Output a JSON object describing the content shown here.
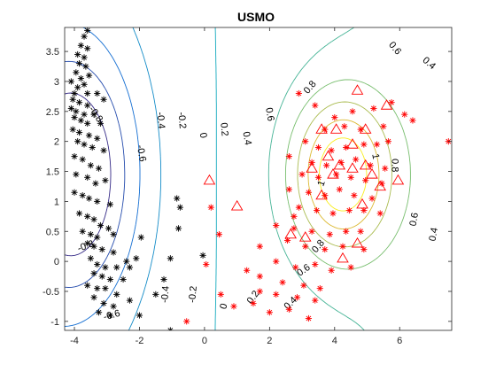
{
  "chart_data": {
    "type": "scatter",
    "title": "USMO",
    "xlabel": "",
    "ylabel": "",
    "xlim": [
      -4.3,
      7.6
    ],
    "ylim": [
      -1.15,
      3.9
    ],
    "xticks": [
      -4,
      -2,
      0,
      2,
      4,
      6
    ],
    "yticks": [
      -1,
      -0.5,
      0,
      0.5,
      1,
      1.5,
      2,
      2.5,
      3,
      3.5
    ],
    "grid": false,
    "legend": "none",
    "colors": {
      "class_negative": "#000000",
      "class_positive": "#ff0000",
      "support_vectors": "#ff0000"
    },
    "marker_names": {
      "class_negative": "black-asterisk",
      "class_positive": "red-asterisk",
      "support_vectors": "red-triangle"
    },
    "series": [
      {
        "marker": "black-asterisk",
        "points": [
          [
            -3.6,
            3.85
          ],
          [
            -3.7,
            3.75
          ],
          [
            -3.8,
            3.6
          ],
          [
            -3.6,
            3.55
          ],
          [
            -3.9,
            3.45
          ],
          [
            -3.7,
            3.4
          ],
          [
            -3.85,
            3.3
          ],
          [
            -3.65,
            3.25
          ],
          [
            -3.95,
            3.15
          ],
          [
            -3.55,
            3.1
          ],
          [
            -3.8,
            3.05
          ],
          [
            -4.1,
            3.0
          ],
          [
            -3.7,
            2.95
          ],
          [
            -3.9,
            2.9
          ],
          [
            -4.0,
            2.8
          ],
          [
            -3.6,
            2.8
          ],
          [
            -3.3,
            2.8
          ],
          [
            -4.05,
            2.7
          ],
          [
            -3.85,
            2.65
          ],
          [
            -3.6,
            2.6
          ],
          [
            -4.1,
            2.55
          ],
          [
            -3.95,
            2.5
          ],
          [
            -3.7,
            2.45
          ],
          [
            -3.4,
            2.45
          ],
          [
            -4.0,
            2.4
          ],
          [
            -3.8,
            2.35
          ],
          [
            -3.6,
            2.3
          ],
          [
            -3.2,
            2.3
          ],
          [
            -4.05,
            2.2
          ],
          [
            -3.85,
            2.15
          ],
          [
            -3.55,
            2.1
          ],
          [
            -3.3,
            2.05
          ],
          [
            -3.9,
            2.0
          ],
          [
            -3.7,
            1.95
          ],
          [
            -3.45,
            1.9
          ],
          [
            -3.1,
            1.85
          ],
          [
            -4.0,
            1.75
          ],
          [
            -3.75,
            1.7
          ],
          [
            -3.5,
            1.6
          ],
          [
            -3.25,
            1.55
          ],
          [
            -3.95,
            1.45
          ],
          [
            -3.6,
            1.4
          ],
          [
            -3.35,
            1.3
          ],
          [
            -3.05,
            1.35
          ],
          [
            -4.0,
            1.15
          ],
          [
            -3.75,
            1.1
          ],
          [
            -3.55,
            1.05
          ],
          [
            -3.3,
            1.0
          ],
          [
            -2.9,
            0.95
          ],
          [
            -3.85,
            0.8
          ],
          [
            -3.6,
            0.75
          ],
          [
            -3.4,
            0.7
          ],
          [
            -3.2,
            0.6
          ],
          [
            -2.95,
            0.55
          ],
          [
            -3.75,
            0.5
          ],
          [
            -3.5,
            0.45
          ],
          [
            -3.3,
            0.4
          ],
          [
            -2.8,
            0.45
          ],
          [
            -3.6,
            0.3
          ],
          [
            -3.4,
            0.25
          ],
          [
            -3.15,
            0.2
          ],
          [
            -2.8,
            0.15
          ],
          [
            -3.5,
            0.05
          ],
          [
            -3.3,
            -0.05
          ],
          [
            -3.05,
            -0.1
          ],
          [
            -2.7,
            -0.1
          ],
          [
            -2.4,
            0.0
          ],
          [
            -3.4,
            -0.2
          ],
          [
            -3.15,
            -0.25
          ],
          [
            -2.9,
            -0.3
          ],
          [
            -2.5,
            -0.3
          ],
          [
            -3.6,
            -0.4
          ],
          [
            -3.3,
            -0.45
          ],
          [
            -3.05,
            -0.45
          ],
          [
            -2.7,
            -0.55
          ],
          [
            -3.4,
            -0.6
          ],
          [
            -3.1,
            -0.7
          ],
          [
            -2.8,
            -0.75
          ],
          [
            -2.3,
            -0.65
          ],
          [
            -3.25,
            -0.85
          ],
          [
            -2.9,
            -0.9
          ],
          [
            -2.0,
            -0.9
          ],
          [
            -1.5,
            -0.55
          ],
          [
            -1.25,
            -0.3
          ],
          [
            -1.05,
            0.05
          ],
          [
            -0.8,
            0.55
          ],
          [
            -0.75,
            0.9
          ],
          [
            -0.85,
            1.05
          ],
          [
            -1.95,
            0.4
          ],
          [
            -2.1,
            0.05
          ],
          [
            -2.3,
            -0.1
          ],
          [
            -1.05,
            -1.15
          ],
          [
            -0.05,
            0.1
          ],
          [
            -3.1,
            2.7
          ]
        ]
      },
      {
        "marker": "red-asterisk",
        "points": [
          [
            2.9,
            2.8
          ],
          [
            3.4,
            2.6
          ],
          [
            4.0,
            2.4
          ],
          [
            4.55,
            2.5
          ],
          [
            5.2,
            2.55
          ],
          [
            5.75,
            2.65
          ],
          [
            6.15,
            2.45
          ],
          [
            6.4,
            2.35
          ],
          [
            5.5,
            2.25
          ],
          [
            3.7,
            2.2
          ],
          [
            4.3,
            2.25
          ],
          [
            4.8,
            2.2
          ],
          [
            3.1,
            2.0
          ],
          [
            3.5,
            1.9
          ],
          [
            3.9,
            1.85
          ],
          [
            4.35,
            1.9
          ],
          [
            4.9,
            1.95
          ],
          [
            5.3,
            1.95
          ],
          [
            5.65,
            2.0
          ],
          [
            7.5,
            2.0
          ],
          [
            2.6,
            1.75
          ],
          [
            3.3,
            1.65
          ],
          [
            3.75,
            1.6
          ],
          [
            4.2,
            1.65
          ],
          [
            4.65,
            1.7
          ],
          [
            5.1,
            1.6
          ],
          [
            5.55,
            1.55
          ],
          [
            3.0,
            1.45
          ],
          [
            3.5,
            1.4
          ],
          [
            4.05,
            1.45
          ],
          [
            4.5,
            1.4
          ],
          [
            4.95,
            1.35
          ],
          [
            5.45,
            1.3
          ],
          [
            2.6,
            1.2
          ],
          [
            3.2,
            1.15
          ],
          [
            3.7,
            1.1
          ],
          [
            4.15,
            1.2
          ],
          [
            4.6,
            1.1
          ],
          [
            5.15,
            1.05
          ],
          [
            2.9,
            0.9
          ],
          [
            3.45,
            0.85
          ],
          [
            3.95,
            0.8
          ],
          [
            4.45,
            0.85
          ],
          [
            4.9,
            0.85
          ],
          [
            5.4,
            0.8
          ],
          [
            2.2,
            0.6
          ],
          [
            2.75,
            0.55
          ],
          [
            3.3,
            0.5
          ],
          [
            3.85,
            0.45
          ],
          [
            4.35,
            0.5
          ],
          [
            4.8,
            0.5
          ],
          [
            2.55,
            0.35
          ],
          [
            3.1,
            0.25
          ],
          [
            3.7,
            0.2
          ],
          [
            4.25,
            0.25
          ],
          [
            4.9,
            0.2
          ],
          [
            2.2,
            0.0
          ],
          [
            2.8,
            -0.1
          ],
          [
            3.4,
            -0.05
          ],
          [
            3.9,
            -0.15
          ],
          [
            4.5,
            -0.1
          ],
          [
            1.3,
            -0.15
          ],
          [
            1.7,
            -0.25
          ],
          [
            2.4,
            -0.35
          ],
          [
            3.05,
            -0.4
          ],
          [
            3.55,
            -0.45
          ],
          [
            1.7,
            -0.5
          ],
          [
            2.2,
            -0.55
          ],
          [
            2.85,
            -0.6
          ],
          [
            3.4,
            -0.65
          ],
          [
            1.5,
            -0.7
          ],
          [
            2.0,
            -0.85
          ],
          [
            2.6,
            -0.8
          ],
          [
            3.2,
            -0.95
          ],
          [
            0.9,
            -0.75
          ],
          [
            0.5,
            -0.55
          ],
          [
            0.05,
            -0.05
          ],
          [
            0.2,
            0.9
          ],
          [
            0.45,
            0.45
          ],
          [
            -0.55,
            -1.0
          ],
          [
            1.7,
            0.25
          ],
          [
            2.75,
            0.75
          ]
        ]
      },
      {
        "marker": "red-triangle",
        "points": [
          [
            4.7,
            2.85
          ],
          [
            5.6,
            2.6
          ],
          [
            3.6,
            2.2
          ],
          [
            4.05,
            2.2
          ],
          [
            4.95,
            2.2
          ],
          [
            4.55,
            1.95
          ],
          [
            3.8,
            1.75
          ],
          [
            4.15,
            1.6
          ],
          [
            4.55,
            1.55
          ],
          [
            3.3,
            1.55
          ],
          [
            4.95,
            1.6
          ],
          [
            5.15,
            1.45
          ],
          [
            3.95,
            1.45
          ],
          [
            5.95,
            1.35
          ],
          [
            5.4,
            1.25
          ],
          [
            0.15,
            1.35
          ],
          [
            3.6,
            1.1
          ],
          [
            1.0,
            0.92
          ],
          [
            4.85,
            0.95
          ],
          [
            2.65,
            0.45
          ],
          [
            3.1,
            0.4
          ],
          [
            4.7,
            0.3
          ],
          [
            4.25,
            0.05
          ]
        ]
      }
    ],
    "contours": {
      "levels": [
        -0.8,
        -0.6,
        -0.4,
        -0.2,
        0,
        0.2,
        0.4,
        0.6,
        0.8,
        1
      ],
      "label_values": [
        -0.8,
        -0.6,
        -0.4,
        -0.2,
        0,
        0.2,
        0.4,
        0.6,
        0.8,
        1
      ],
      "labels": [
        {
          "text": "-0.8",
          "x": -3.35,
          "y": 2.45,
          "rot": 55
        },
        {
          "text": "-0.8",
          "x": -3.65,
          "y": 0.25,
          "rot": -20
        },
        {
          "text": "-0.6",
          "x": -1.95,
          "y": 1.8,
          "rot": 80
        },
        {
          "text": "-0.6",
          "x": -2.85,
          "y": -0.9,
          "rot": -15
        },
        {
          "text": "-0.4",
          "x": -1.35,
          "y": 2.35,
          "rot": 85
        },
        {
          "text": "-0.4",
          "x": -1.2,
          "y": -0.55,
          "rot": -85
        },
        {
          "text": "-0.2",
          "x": -0.7,
          "y": 2.35,
          "rot": 85
        },
        {
          "text": "-0.2",
          "x": -0.35,
          "y": -0.55,
          "rot": -85
        },
        {
          "text": "0",
          "x": -0.05,
          "y": 2.1,
          "rot": 80
        },
        {
          "text": "0",
          "x": 0.6,
          "y": -0.75,
          "rot": -75
        },
        {
          "text": "0.2",
          "x": 0.6,
          "y": 2.2,
          "rot": 85
        },
        {
          "text": "0.2",
          "x": 1.5,
          "y": -0.6,
          "rot": -55
        },
        {
          "text": "0.4",
          "x": 1.3,
          "y": 2.05,
          "rot": 80
        },
        {
          "text": "0.4",
          "x": 7.05,
          "y": 0.45,
          "rot": -80
        },
        {
          "text": "0.4",
          "x": 2.65,
          "y": -0.7,
          "rot": -45
        },
        {
          "text": "0.4",
          "x": 6.9,
          "y": 3.3,
          "rot": 40
        },
        {
          "text": "0.6",
          "x": 2.0,
          "y": 2.45,
          "rot": 80
        },
        {
          "text": "0.6",
          "x": 6.45,
          "y": 0.7,
          "rot": -80
        },
        {
          "text": "0.6",
          "x": 3.05,
          "y": -0.15,
          "rot": -35
        },
        {
          "text": "0.6",
          "x": 5.85,
          "y": 3.55,
          "rot": 50
        },
        {
          "text": "0.8",
          "x": 3.25,
          "y": 2.9,
          "rot": -50
        },
        {
          "text": "0.8",
          "x": 5.85,
          "y": 1.6,
          "rot": 90
        },
        {
          "text": "0.8",
          "x": 3.5,
          "y": 0.25,
          "rot": -50
        },
        {
          "text": "1",
          "x": 3.6,
          "y": 1.3,
          "rot": -70
        },
        {
          "text": "1",
          "x": 5.25,
          "y": 1.75,
          "rot": 80
        }
      ]
    }
  }
}
